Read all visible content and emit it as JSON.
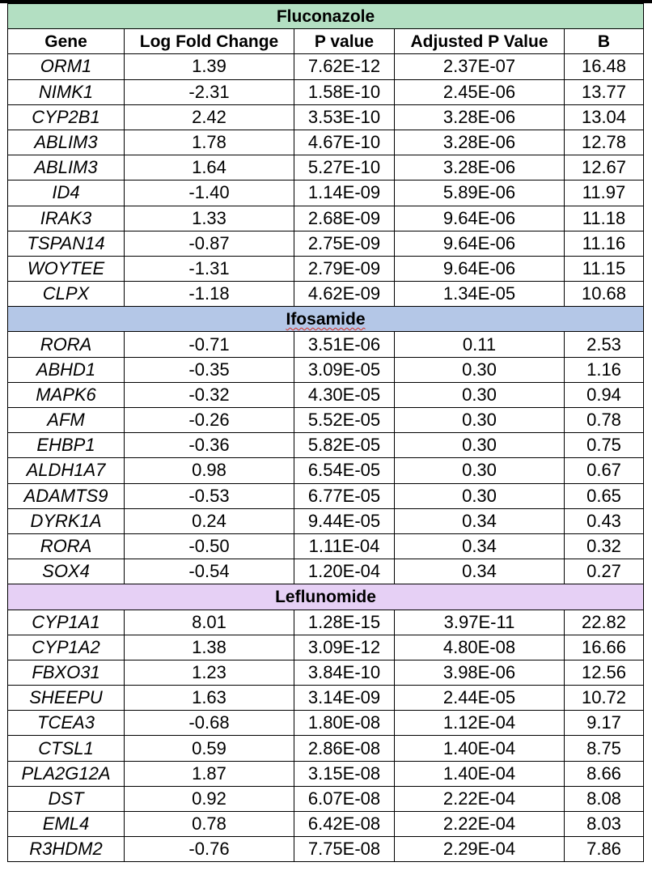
{
  "columns": [
    "Gene",
    "Log Fold Change",
    "P value",
    "Adjusted P Value",
    "B"
  ],
  "colors": {
    "fluconazole_band": "#b3dfc2",
    "ifosamide_band": "#b4c7e7",
    "leflunomide_band": "#e6d0f5",
    "spellcheck_underline": "#d93025"
  },
  "sections": [
    {
      "name": "Fluconazole",
      "band_color": "#b3dfc2",
      "show_column_header": true,
      "spellcheck": false,
      "rows": [
        [
          "ORM1",
          "1.39",
          "7.62E-12",
          "2.37E-07",
          "16.48"
        ],
        [
          "NIMK1",
          "-2.31",
          "1.58E-10",
          "2.45E-06",
          "13.77"
        ],
        [
          "CYP2B1",
          "2.42",
          "3.53E-10",
          "3.28E-06",
          "13.04"
        ],
        [
          "ABLIM3",
          "1.78",
          "4.67E-10",
          "3.28E-06",
          "12.78"
        ],
        [
          "ABLIM3",
          "1.64",
          "5.27E-10",
          "3.28E-06",
          "12.67"
        ],
        [
          "ID4",
          "-1.40",
          "1.14E-09",
          "5.89E-06",
          "11.97"
        ],
        [
          "IRAK3",
          "1.33",
          "2.68E-09",
          "9.64E-06",
          "11.18"
        ],
        [
          "TSPAN14",
          "-0.87",
          "2.75E-09",
          "9.64E-06",
          "11.16"
        ],
        [
          "WOYTEE",
          "-1.31",
          "2.79E-09",
          "9.64E-06",
          "11.15"
        ],
        [
          "CLPX",
          "-1.18",
          "4.62E-09",
          "1.34E-05",
          "10.68"
        ]
      ]
    },
    {
      "name": "Ifosamide",
      "band_color": "#b4c7e7",
      "show_column_header": false,
      "spellcheck": true,
      "rows": [
        [
          "RORA",
          "-0.71",
          "3.51E-06",
          "0.11",
          "2.53"
        ],
        [
          "ABHD1",
          "-0.35",
          "3.09E-05",
          "0.30",
          "1.16"
        ],
        [
          "MAPK6",
          "-0.32",
          "4.30E-05",
          "0.30",
          "0.94"
        ],
        [
          "AFM",
          "-0.26",
          "5.52E-05",
          "0.30",
          "0.78"
        ],
        [
          "EHBP1",
          "-0.36",
          "5.82E-05",
          "0.30",
          "0.75"
        ],
        [
          "ALDH1A7",
          "0.98",
          "6.54E-05",
          "0.30",
          "0.67"
        ],
        [
          "ADAMTS9",
          "-0.53",
          "6.77E-05",
          "0.30",
          "0.65"
        ],
        [
          "DYRK1A",
          "0.24",
          "9.44E-05",
          "0.34",
          "0.43"
        ],
        [
          "RORA",
          "-0.50",
          "1.11E-04",
          "0.34",
          "0.32"
        ],
        [
          "SOX4",
          "-0.54",
          "1.20E-04",
          "0.34",
          "0.27"
        ]
      ]
    },
    {
      "name": "Leflunomide",
      "band_color": "#e6d0f5",
      "show_column_header": false,
      "spellcheck": false,
      "rows": [
        [
          "CYP1A1",
          "8.01",
          "1.28E-15",
          "3.97E-11",
          "22.82"
        ],
        [
          "CYP1A2",
          "1.38",
          "3.09E-12",
          "4.80E-08",
          "16.66"
        ],
        [
          "FBXO31",
          "1.23",
          "3.84E-10",
          "3.98E-06",
          "12.56"
        ],
        [
          "SHEEPU",
          "1.63",
          "3.14E-09",
          "2.44E-05",
          "10.72"
        ],
        [
          "TCEA3",
          "-0.68",
          "1.80E-08",
          "1.12E-04",
          "9.17"
        ],
        [
          "CTSL1",
          "0.59",
          "2.86E-08",
          "1.40E-04",
          "8.75"
        ],
        [
          "PLA2G12A",
          "1.87",
          "3.15E-08",
          "1.40E-04",
          "8.66"
        ],
        [
          "DST",
          "0.92",
          "6.07E-08",
          "2.22E-04",
          "8.08"
        ],
        [
          "EML4",
          "0.78",
          "6.42E-08",
          "2.22E-04",
          "8.03"
        ],
        [
          "R3HDM2",
          "-0.76",
          "7.75E-08",
          "2.29E-04",
          "7.86"
        ]
      ]
    }
  ]
}
